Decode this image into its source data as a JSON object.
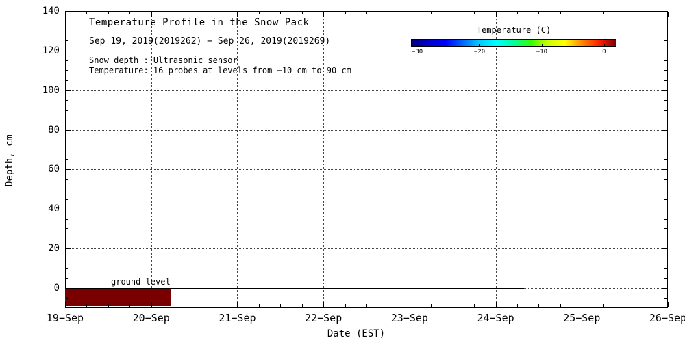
{
  "chart_data": {
    "type": "heatmap",
    "title": "Temperature Profile in the Snow Pack",
    "date_range": "Sep 19, 2019(2019262) − Sep 26, 2019(2019269)",
    "notes": [
      "Snow depth : Ultrasonic sensor",
      "Temperature: 16 probes at levels from −10 cm to 90 cm"
    ],
    "xlabel": "Date (EST)",
    "ylabel": "Depth, cm",
    "x_tick_labels": [
      "19−Sep",
      "20−Sep",
      "21−Sep",
      "22−Sep",
      "23−Sep",
      "24−Sep",
      "25−Sep",
      "26−Sep"
    ],
    "xlim_days": [
      0,
      7
    ],
    "x_minor_per_major": 4,
    "y_ticks": [
      0,
      20,
      40,
      60,
      80,
      100,
      120,
      140
    ],
    "ylim": [
      -10,
      140
    ],
    "y_minor_step": 5,
    "grid": true,
    "grid_style": "dotted",
    "annotations": {
      "ground_label": "ground level"
    },
    "ground_line": {
      "depth_cm": 0,
      "start_day": 0,
      "end_day": 5.33,
      "color": "#000000"
    },
    "soil_band": {
      "top_cm": 0,
      "bottom_cm": -10,
      "start_day": 0,
      "end_day": 1.23,
      "color": "#7a0000",
      "approx_temp_c": 0,
      "meaning": "soil probe layer (−10 cm to 0 cm) near 0 °C; no snow pack recorded above ground"
    },
    "colorbar": {
      "title": "Temperature (C)",
      "tick_labels": [
        "−30",
        "−20",
        "−10",
        "0"
      ],
      "tick_values": [
        -30,
        -20,
        -10,
        0
      ],
      "range": [
        -31,
        2
      ],
      "colors": [
        "#000080",
        "#0000cd",
        "#0000ff",
        "#0066ff",
        "#00ccff",
        "#00ffff",
        "#00ff99",
        "#33ff00",
        "#ccff00",
        "#ffff00",
        "#ff8800",
        "#ff2200",
        "#800000"
      ]
    },
    "frame_color": "#000000",
    "grid_color": "#444444",
    "background_color": "#ffffff"
  }
}
